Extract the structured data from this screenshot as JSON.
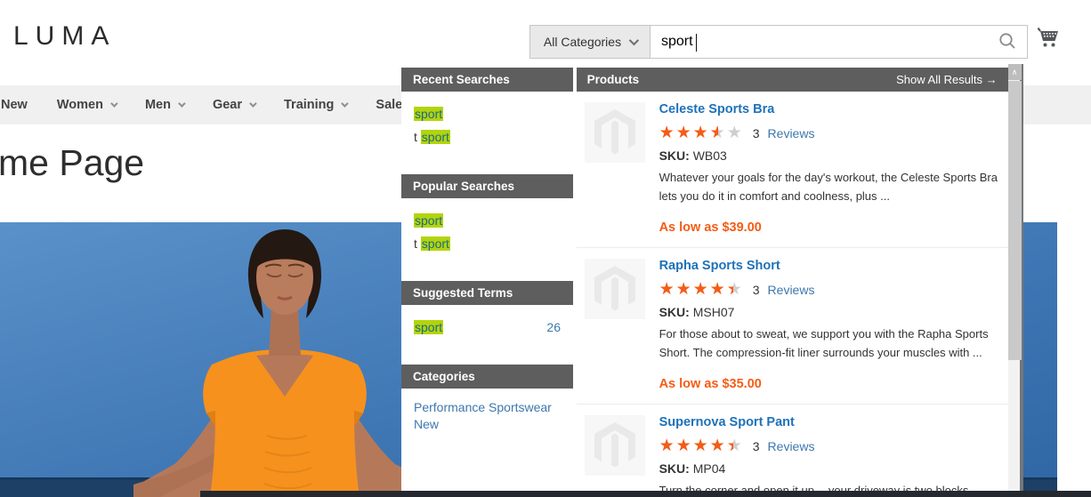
{
  "header": {
    "logo": "LUMA",
    "search": {
      "category_selector": "All Categories",
      "query": "sport",
      "search_icon": "search-icon",
      "cart_icon": "cart-icon"
    }
  },
  "nav": {
    "items": [
      {
        "label": "New"
      },
      {
        "label": "Women"
      },
      {
        "label": "Men"
      },
      {
        "label": "Gear"
      },
      {
        "label": "Training"
      },
      {
        "label": "Sale"
      }
    ]
  },
  "page": {
    "title": "me Page"
  },
  "autocomplete": {
    "recent": {
      "title": "Recent Searches",
      "items": [
        {
          "prefix": "",
          "term": "sport"
        },
        {
          "prefix": "t ",
          "term": "sport"
        }
      ]
    },
    "popular": {
      "title": "Popular Searches",
      "items": [
        {
          "prefix": "",
          "term": "sport"
        },
        {
          "prefix": "t ",
          "term": "sport"
        }
      ]
    },
    "suggested": {
      "title": "Suggested Terms",
      "items": [
        {
          "prefix": "",
          "term": "sport",
          "count": "26"
        }
      ]
    },
    "categories": {
      "title": "Categories",
      "items": [
        {
          "label": "Performance Sportswear New"
        }
      ]
    }
  },
  "products_panel": {
    "title": "Products",
    "show_all": "Show All Results →",
    "sku_label": "SKU:",
    "star_glyphs": "★★★★★",
    "items": [
      {
        "title": "Celeste Sports Bra",
        "rating_percent": 70,
        "review_count": "3",
        "reviews_label": "Reviews",
        "sku": "WB03",
        "description": "Whatever your goals for the day's workout, the Celeste Sports Bra lets you do it in comfort and coolness, plus ...",
        "price": "As low as $39.00"
      },
      {
        "title": "Rapha Sports Short",
        "rating_percent": 88,
        "review_count": "3",
        "reviews_label": "Reviews",
        "sku": "MSH07",
        "description": "For those about to sweat, we support you with the Rapha Sports Short. The compression-fit liner surrounds your muscles with ...",
        "price": "As low as $35.00"
      },
      {
        "title": "Supernova Sport Pant",
        "rating_percent": 88,
        "review_count": "3",
        "reviews_label": "Reviews",
        "sku": "MP04",
        "description": "Turn the corner and open it up -- your driveway is two blocks away."
      }
    ]
  },
  "scrollbar": {
    "up_glyph": "∧"
  },
  "colors": {
    "highlight_green": "#b3d40c",
    "term_teal": "#1b6a85",
    "link_blue": "#3d77ad",
    "title_blue": "#1e72b8",
    "price_orange": "#f55c16",
    "section_header_gray": "#5e5e5e",
    "nav_gray": "#f0f0f0",
    "hero_sky_blue": "#3f77b4",
    "hero_ocean_navy": "#1d4066"
  }
}
